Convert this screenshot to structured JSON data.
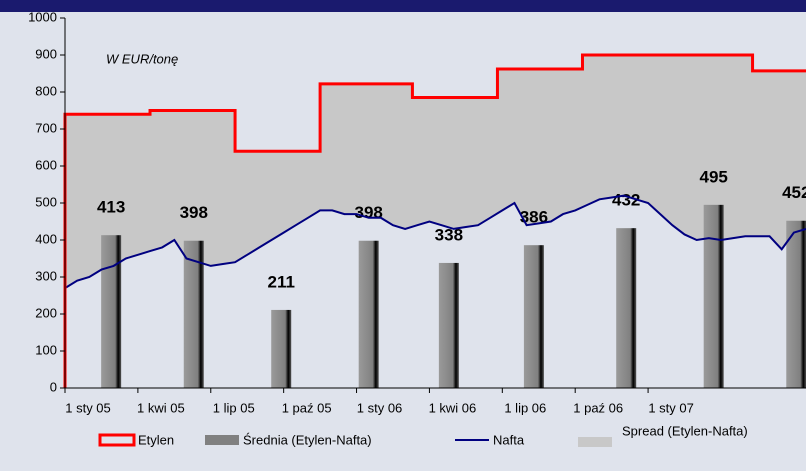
{
  "chart_data": {
    "type": "combo",
    "annotation": "W EUR/tonę",
    "xlim": [
      0,
      30.5
    ],
    "xticks": [
      {
        "value": 0,
        "label": "1 sty 05"
      },
      {
        "value": 3,
        "label": "1 kwi 05"
      },
      {
        "value": 6,
        "label": "1 lip 05"
      },
      {
        "value": 9,
        "label": "1 paź 05"
      },
      {
        "value": 12,
        "label": "1 sty 06"
      },
      {
        "value": 15,
        "label": "1 kwi 06"
      },
      {
        "value": 18,
        "label": "1 lip 06"
      },
      {
        "value": 21,
        "label": "1 paź 06"
      },
      {
        "value": 24,
        "label": "1 sty 07"
      }
    ],
    "ylim": [
      0,
      1000
    ],
    "yticks": [
      0,
      100,
      200,
      300,
      400,
      500,
      600,
      700,
      800,
      900,
      1000
    ],
    "series": [
      {
        "name": "Etylen",
        "color": "#ff0000",
        "kind": "step",
        "x": [
          0,
          3.5,
          7,
          10.5,
          14.3,
          17.8,
          21.3,
          28.3
        ],
        "values": [
          740,
          750,
          640,
          822,
          785,
          862,
          900,
          857
        ]
      },
      {
        "name": "Średnia (Etylen-Nafta)",
        "color": "#808080",
        "kind": "bar",
        "x": [
          1.9,
          5.3,
          8.9,
          12.5,
          15.8,
          19.3,
          23.1,
          26.7,
          30.1
        ],
        "values": [
          413,
          398,
          211,
          398,
          338,
          386,
          432,
          495,
          452
        ]
      },
      {
        "name": "Nafta",
        "color": "#000080",
        "kind": "line",
        "x": [
          0,
          0.5,
          1,
          1.5,
          2,
          2.5,
          3,
          3.5,
          4,
          4.5,
          5,
          5.5,
          6,
          6.5,
          7,
          7.5,
          8,
          8.5,
          9,
          9.5,
          10,
          10.5,
          11,
          11.5,
          12,
          12.5,
          13,
          13.5,
          14,
          14.5,
          15,
          15.5,
          16,
          16.5,
          17,
          17.5,
          18,
          18.5,
          19,
          19.5,
          20,
          20.5,
          21,
          21.5,
          22,
          22.5,
          23,
          23.5,
          24,
          24.5,
          25,
          25.5,
          26,
          26.5,
          27,
          27.5,
          28,
          28.5,
          29,
          29.5,
          30,
          30.5
        ],
        "values": [
          270,
          290,
          300,
          320,
          330,
          350,
          360,
          370,
          380,
          400,
          350,
          340,
          330,
          335,
          340,
          360,
          380,
          400,
          420,
          440,
          460,
          480,
          480,
          470,
          470,
          460,
          460,
          440,
          430,
          440,
          450,
          440,
          430,
          435,
          440,
          460,
          480,
          500,
          440,
          445,
          450,
          470,
          480,
          495,
          510,
          515,
          520,
          510,
          500,
          470,
          440,
          415,
          400,
          405,
          400,
          405,
          410,
          410,
          410,
          375,
          420,
          430
        ]
      },
      {
        "name": "Spread (Etylen-Nafta)",
        "color": "#c8c8c8",
        "kind": "spread"
      }
    ]
  }
}
